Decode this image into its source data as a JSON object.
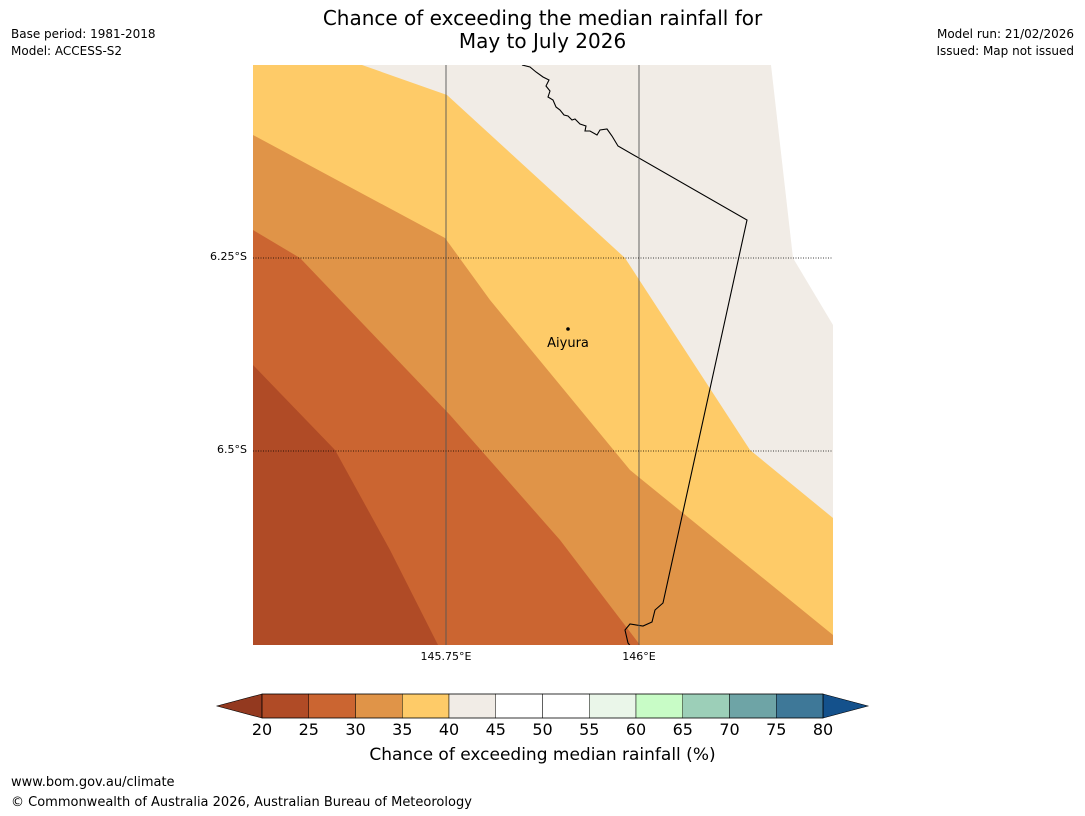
{
  "title_line1": "Chance of exceeding the median rainfall for",
  "title_line2": "May to July 2026",
  "meta_left": {
    "base_period": "Base period: 1981-2018",
    "model": "Model: ACCESS-S2"
  },
  "meta_right": {
    "model_run": "Model run: 21/02/2026",
    "issued": "Issued: Map not issued"
  },
  "map": {
    "lat_labels": [
      "6.25°S",
      "6.5°S"
    ],
    "lon_labels": [
      "145.75°E",
      "146°E"
    ],
    "place": {
      "name": "Aiyura"
    }
  },
  "colorbar": {
    "ticks": [
      "20",
      "25",
      "30",
      "35",
      "40",
      "45",
      "50",
      "55",
      "60",
      "65",
      "70",
      "75",
      "80"
    ],
    "colors": [
      "#b04b26",
      "#cb6531",
      "#e09448",
      "#fecb68",
      "#f1ece6",
      "#ffffff",
      "#ffffff",
      "#eaf6e9",
      "#c8fcc6",
      "#9ccfb8",
      "#6ea4a6",
      "#3e7898"
    ],
    "under_color": "#93391f",
    "over_color": "#14518c",
    "label": "Chance of exceeding median rainfall (%)"
  },
  "footer": {
    "url": "www.bom.gov.au/climate",
    "copyright": "© Commonwealth of Australia 2026, Australian Bureau of Meteorology"
  }
}
